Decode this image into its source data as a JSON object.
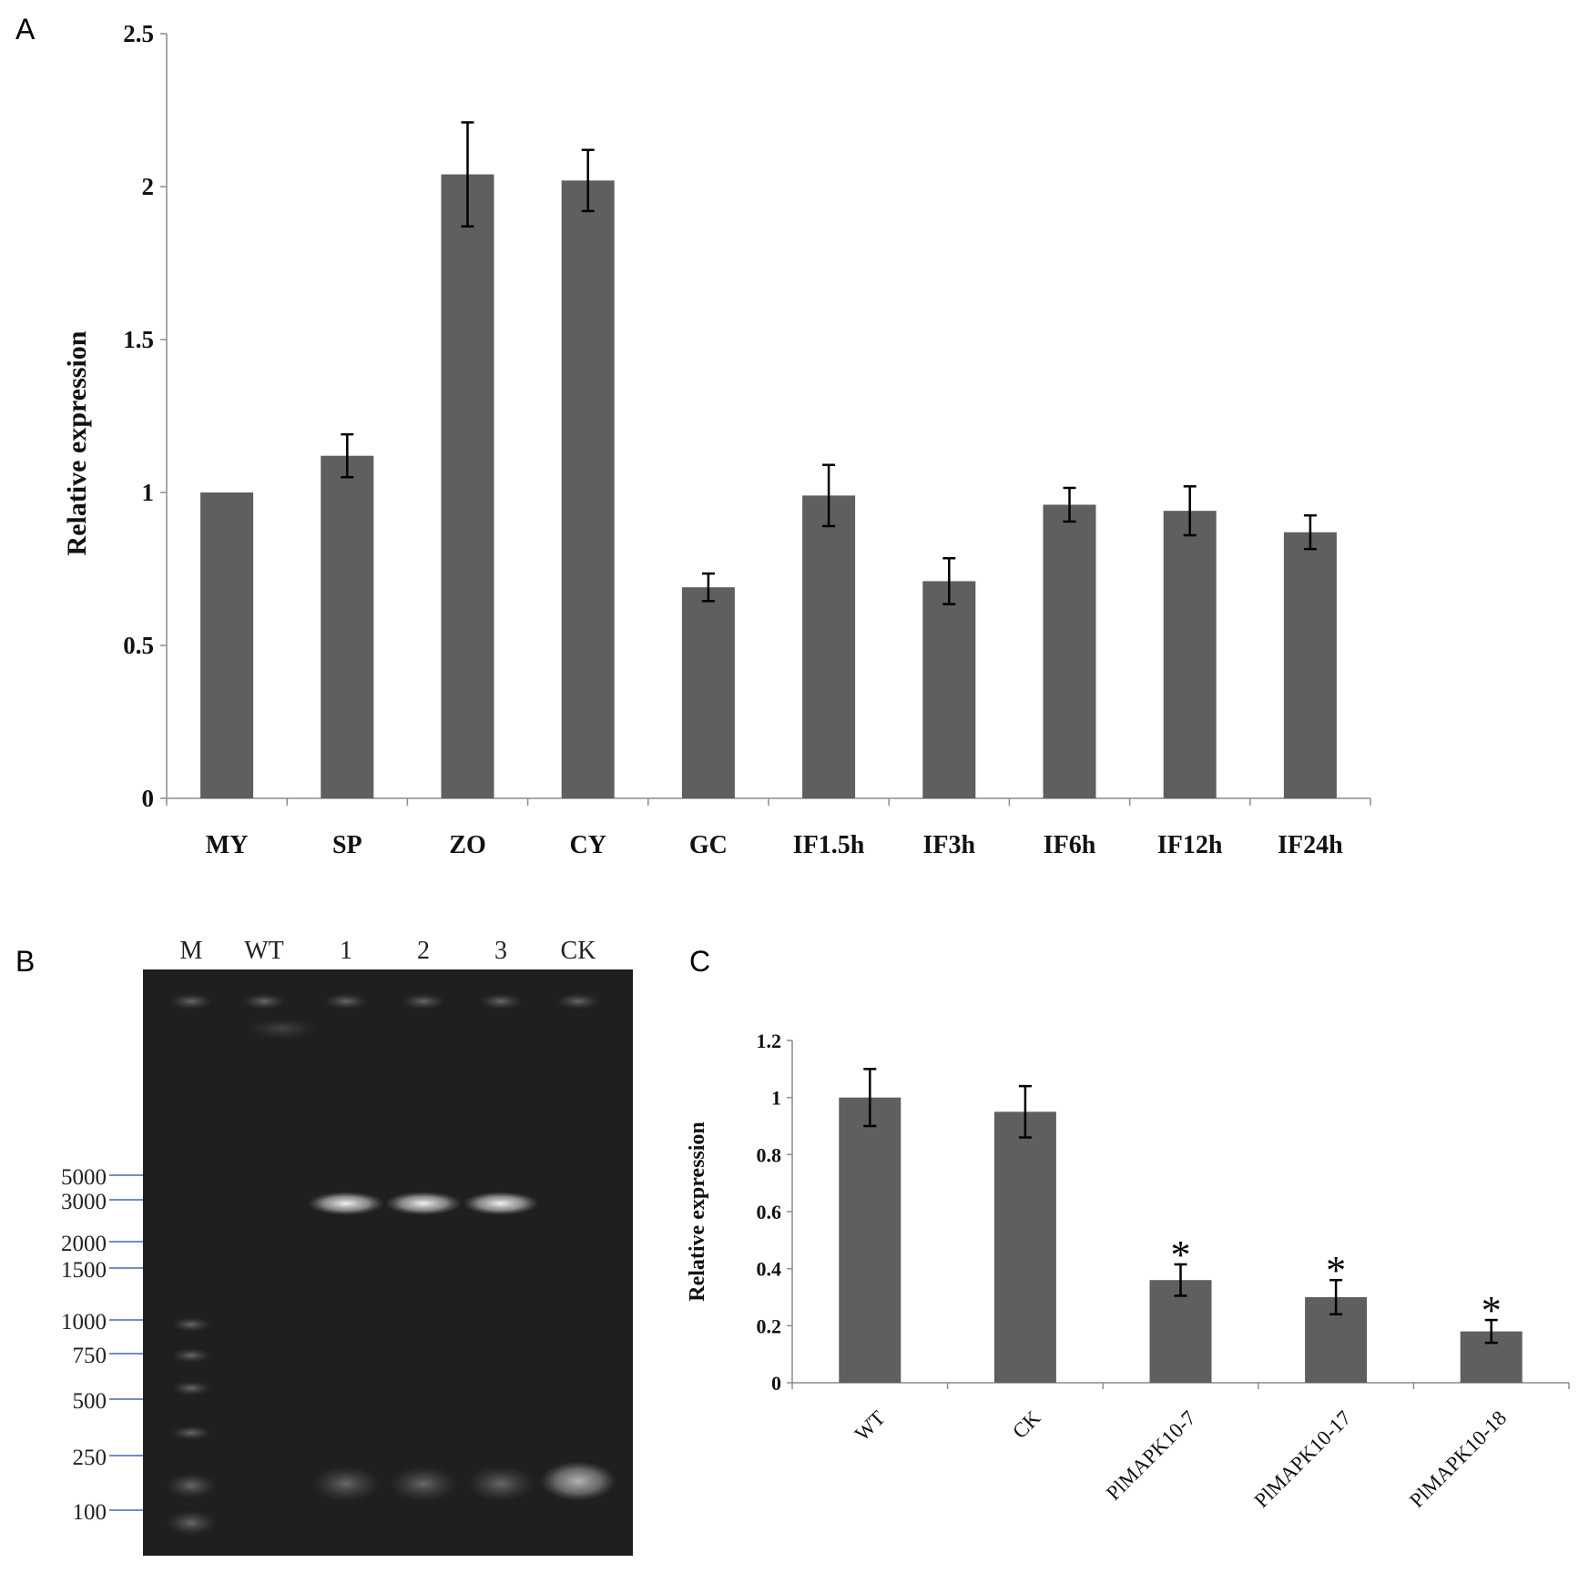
{
  "panels": [
    {
      "letter": "A"
    },
    {
      "letter": "B"
    },
    {
      "letter": "C"
    }
  ],
  "chart_data": [
    {
      "panel": "A",
      "type": "bar",
      "ylabel": "Relative expression",
      "ylim": [
        0,
        2.5
      ],
      "yticks": [
        "0",
        "0.5",
        "1",
        "1.5",
        "2",
        "2.5"
      ],
      "categories": [
        "MY",
        "SP",
        "ZO",
        "CY",
        "GC",
        "IF1.5h",
        "IF3h",
        "IF6h",
        "IF12h",
        "IF24h"
      ],
      "values": [
        1.0,
        1.12,
        2.04,
        2.02,
        0.69,
        0.99,
        0.71,
        0.96,
        0.94,
        0.87
      ],
      "errors": [
        0,
        0.07,
        0.17,
        0.1,
        0.045,
        0.1,
        0.075,
        0.055,
        0.08,
        0.055
      ],
      "bar_color": "#5f5f5f"
    },
    {
      "panel": "C",
      "type": "bar",
      "ylabel": "Relative expression",
      "ylim": [
        0,
        1.2
      ],
      "yticks": [
        "0",
        "0.2",
        "0.4",
        "0.6",
        "0.8",
        "1",
        "1.2"
      ],
      "categories": [
        "WT",
        "CK",
        "PlMAPK10-7",
        "PlMAPK10-17",
        "PlMAPK10-18"
      ],
      "values": [
        1.0,
        0.95,
        0.36,
        0.3,
        0.18
      ],
      "errors": [
        0.1,
        0.09,
        0.055,
        0.06,
        0.04
      ],
      "significance": [
        "",
        "",
        "*",
        "*",
        "*"
      ],
      "bar_color": "#5f5f5f"
    }
  ],
  "gel": {
    "panel": "B",
    "lane_labels": [
      "M",
      "WT",
      "1",
      "2",
      "3",
      "CK"
    ],
    "marker_sizes": [
      "5000",
      "3000",
      "2000",
      "1500",
      "1000",
      "750",
      "500",
      "250",
      "100"
    ],
    "marker_color": "#6d8fc4"
  }
}
